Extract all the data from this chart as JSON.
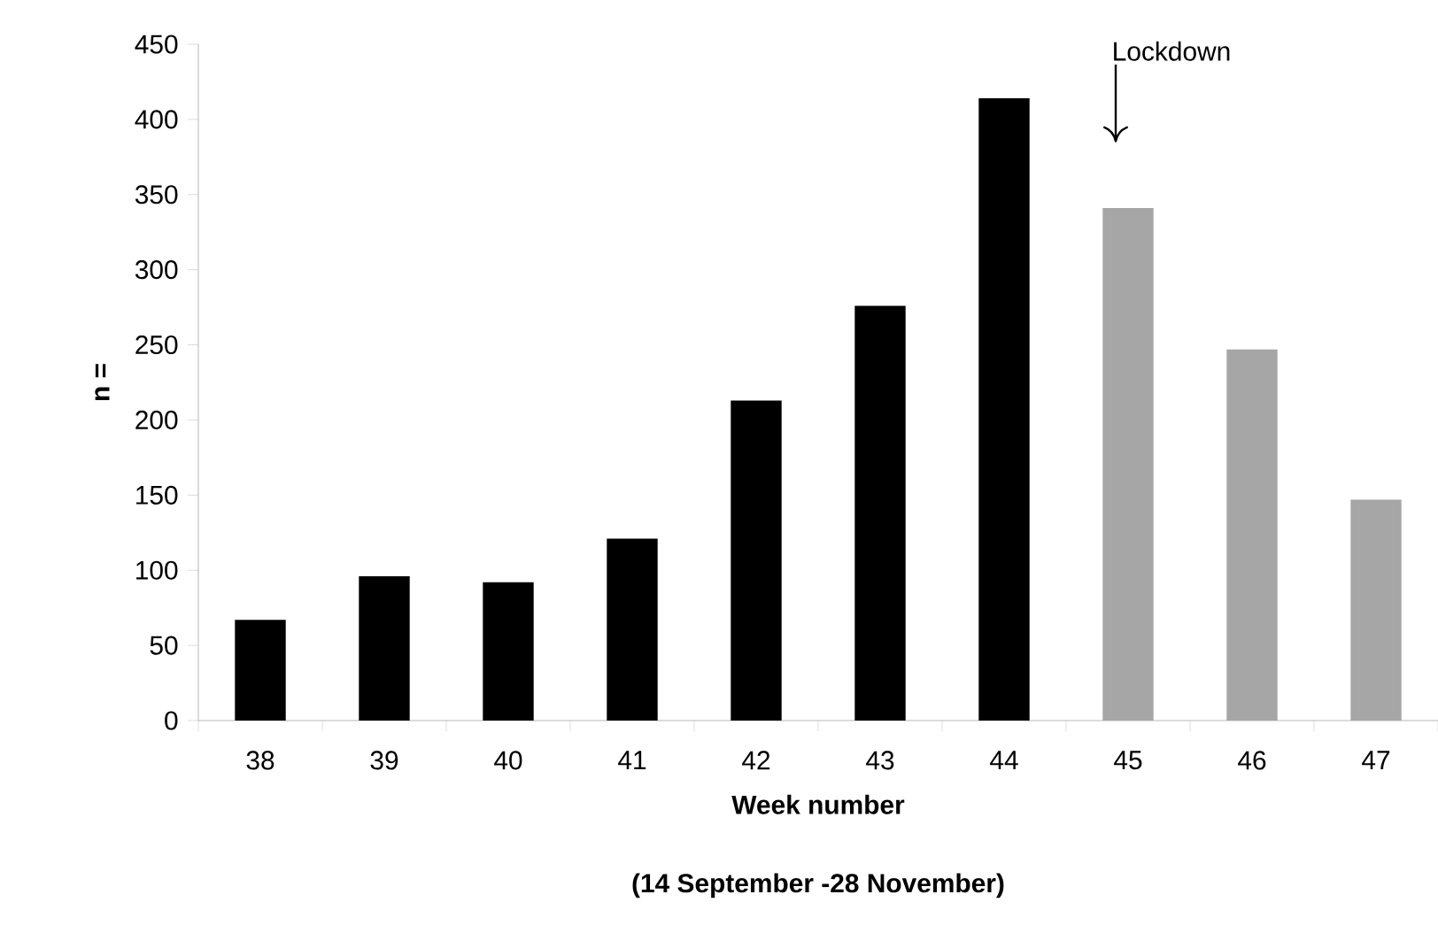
{
  "chart_data": {
    "type": "bar",
    "xlabel": "Week number",
    "ylabel": "n =",
    "categories": [
      "38",
      "39",
      "40",
      "41",
      "42",
      "43",
      "44",
      "45",
      "46",
      "47"
    ],
    "values": [
      67,
      96,
      92,
      121,
      213,
      276,
      414,
      341,
      247,
      147
    ],
    "colors": [
      "#000000",
      "#000000",
      "#000000",
      "#000000",
      "#000000",
      "#000000",
      "#000000",
      "#a6a6a6",
      "#a6a6a6",
      "#a6a6a6"
    ],
    "ylim": [
      0,
      450
    ],
    "yticks": [
      0,
      50,
      100,
      150,
      200,
      250,
      300,
      350,
      400,
      450
    ],
    "grid": false,
    "annotations": [
      "Lockdown",
      "(14 September -28 November)"
    ]
  }
}
